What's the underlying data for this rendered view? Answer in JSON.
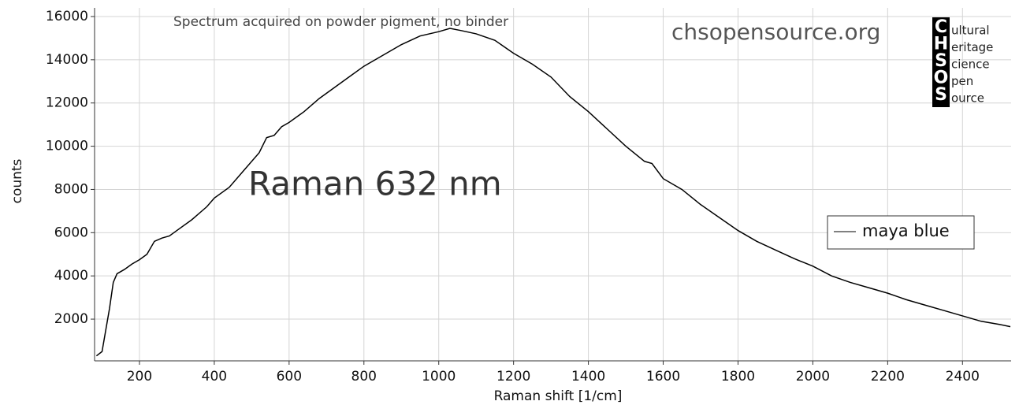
{
  "chart_data": {
    "type": "line",
    "annotations": [
      "Spectrum acquired on powder pigment, no binder",
      "chsopensource.org",
      "Raman 632 nm"
    ],
    "logo": {
      "letters": [
        "C",
        "H",
        "S",
        "O",
        "S"
      ],
      "words": [
        "ultural",
        "eritage",
        "cience",
        "pen",
        "ource"
      ]
    },
    "x_label": "Raman shift [1/cm]",
    "y_label": "counts",
    "x": [
      85,
      100,
      110,
      120,
      130,
      140,
      160,
      180,
      200,
      220,
      240,
      260,
      280,
      300,
      340,
      380,
      400,
      440,
      480,
      520,
      540,
      560,
      580,
      600,
      640,
      680,
      720,
      760,
      800,
      850,
      900,
      950,
      1000,
      1030,
      1060,
      1100,
      1150,
      1200,
      1250,
      1300,
      1350,
      1400,
      1450,
      1500,
      1550,
      1570,
      1600,
      1650,
      1700,
      1750,
      1800,
      1850,
      1900,
      1950,
      2000,
      2050,
      2100,
      2150,
      2200,
      2250,
      2300,
      2350,
      2400,
      2450,
      2500,
      2528
    ],
    "series": [
      {
        "name": "maya blue",
        "color": "#000000",
        "values": [
          300,
          500,
          1500,
          2500,
          3700,
          4100,
          4300,
          4550,
          4750,
          5000,
          5600,
          5750,
          5850,
          6100,
          6600,
          7200,
          7600,
          8100,
          8900,
          9700,
          10400,
          10500,
          10900,
          11100,
          11600,
          12200,
          12700,
          13200,
          13700,
          14200,
          14700,
          15100,
          15300,
          15450,
          15350,
          15200,
          14900,
          14300,
          13800,
          13200,
          12300,
          11600,
          10800,
          10000,
          9300,
          9200,
          8500,
          8000,
          7300,
          6700,
          6100,
          5600,
          5200,
          4800,
          4450,
          4000,
          3700,
          3450,
          3200,
          2900,
          2650,
          2400,
          2150,
          1900,
          1750,
          1650
        ]
      }
    ],
    "xlim": [
      80,
      2530
    ],
    "ylim": [
      70,
      16400
    ],
    "xticks": [
      200,
      400,
      600,
      800,
      1000,
      1200,
      1400,
      1600,
      1800,
      2000,
      2200,
      2400
    ],
    "yticks": [
      2000,
      4000,
      6000,
      8000,
      10000,
      12000,
      14000,
      16000
    ],
    "grid": true
  }
}
